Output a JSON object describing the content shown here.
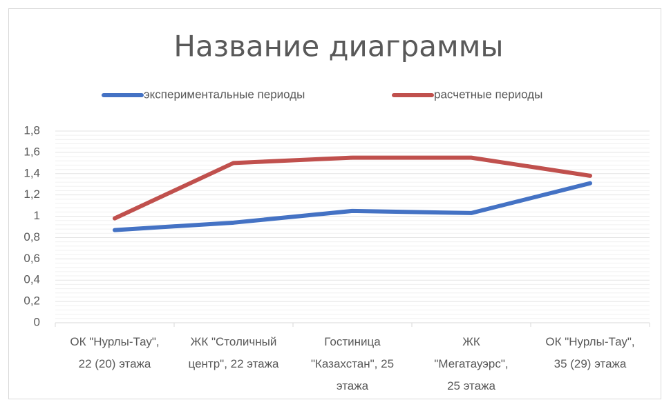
{
  "chart_data": {
    "type": "line",
    "title": "Название диаграммы",
    "categories": [
      "ОК \"Нурлы-Тау\",\n22  (20) этажа",
      "ЖК \"Столичный\nцентр\", 22 этажа",
      "Гостиница\n\"Казахстан\", 25\nэтажа",
      "ЖК\n\"Мегатауэрс\",\n25 этажа",
      "ОК \"Нурлы-Тау\",\n35 (29)  этажа"
    ],
    "series": [
      {
        "name": "экспериментальные периоды",
        "color": "#4472c4",
        "values": [
          0.87,
          0.94,
          1.05,
          1.03,
          1.31
        ]
      },
      {
        "name": "расчетные периоды",
        "color": "#c0504d",
        "values": [
          0.98,
          1.5,
          1.55,
          1.55,
          1.38
        ]
      }
    ],
    "ylim": [
      0,
      1.8
    ],
    "yticks": [
      0,
      {
        "value": 0.2,
        "label": "0,2"
      },
      {
        "value": 0.4,
        "label": "0,4"
      },
      {
        "value": 0.6,
        "label": "0,6"
      },
      {
        "value": 0.8,
        "label": "0,8"
      },
      1,
      {
        "value": 1.2,
        "label": "1,2"
      },
      {
        "value": 1.4,
        "label": "1,4"
      },
      {
        "value": 1.6,
        "label": "1,6"
      },
      {
        "value": 1.8,
        "label": "1,8"
      }
    ],
    "grid": true,
    "legend": "top"
  }
}
